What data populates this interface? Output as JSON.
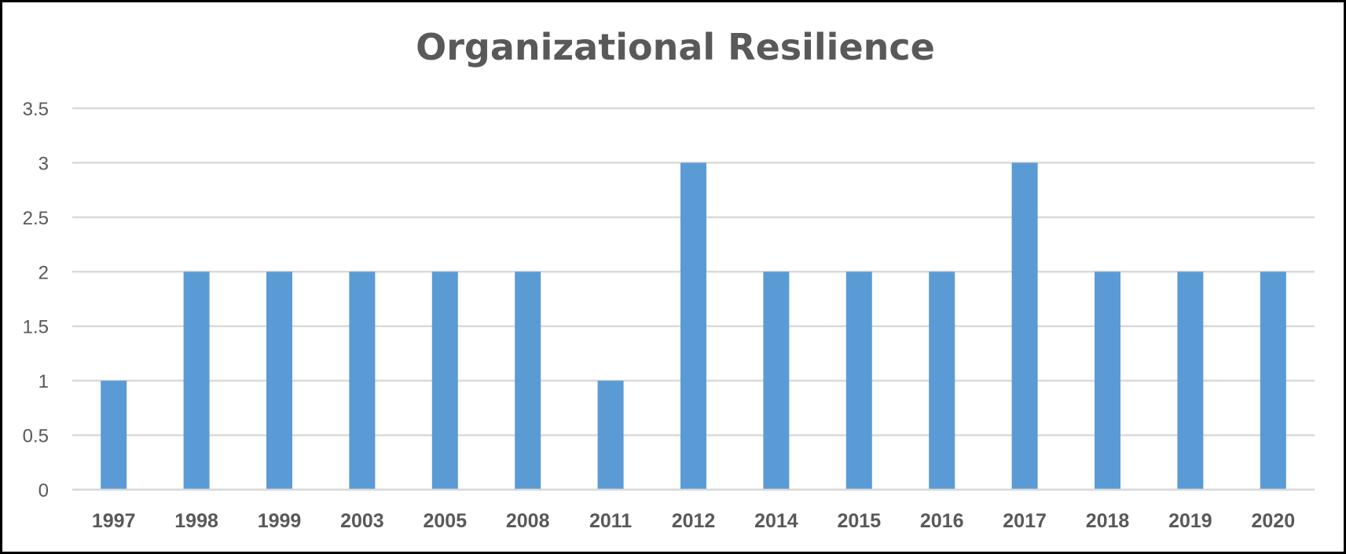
{
  "chart_data": {
    "type": "bar",
    "title": "Organizational Resilience",
    "xlabel": "",
    "ylabel": "",
    "categories": [
      "1997",
      "1998",
      "1999",
      "2003",
      "2005",
      "2008",
      "2011",
      "2012",
      "2014",
      "2015",
      "2016",
      "2017",
      "2018",
      "2019",
      "2020"
    ],
    "values": [
      1,
      2,
      2,
      2,
      2,
      2,
      1,
      3,
      2,
      2,
      2,
      3,
      2,
      2,
      2
    ],
    "ylim": [
      0,
      3.5
    ],
    "yticks": [
      "0",
      "0.5",
      "1",
      "1.5",
      "2",
      "2.5",
      "3",
      "3.5"
    ],
    "grid": true,
    "legend": "none",
    "bar_color": "#5B9BD5",
    "grid_color": "#D9D9D9",
    "text_color": "#595959"
  }
}
